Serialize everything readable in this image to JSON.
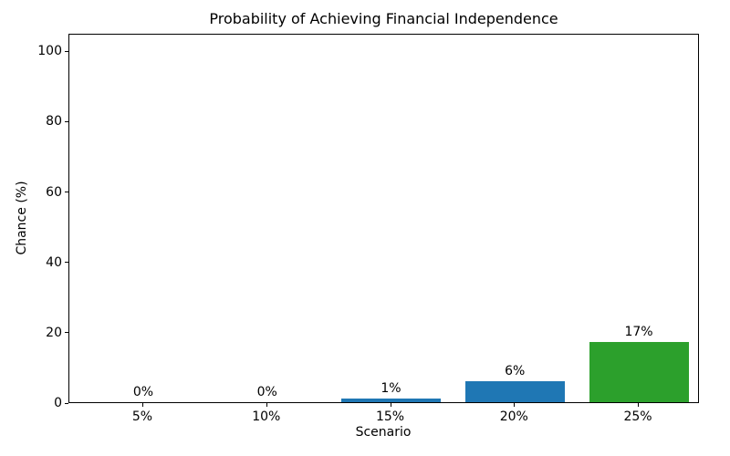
{
  "chart_data": {
    "type": "bar",
    "title": "Probability of Achieving Financial Independence",
    "xlabel": "Scenario",
    "ylabel": "Chance (%)",
    "categories": [
      "5%",
      "10%",
      "15%",
      "20%",
      "25%"
    ],
    "values": [
      0,
      0,
      1,
      6,
      17
    ],
    "bar_labels": [
      "0%",
      "0%",
      "1%",
      "6%",
      "17%"
    ],
    "bar_colors": [
      "#1f77b4",
      "#1f77b4",
      "#1f77b4",
      "#1f77b4",
      "#2ca02c"
    ],
    "yticks": [
      0,
      20,
      40,
      60,
      80,
      100
    ],
    "ylim": [
      0,
      105
    ],
    "grid": false,
    "legend": null,
    "background_color": "#ffffff",
    "spine_color": "#000000",
    "text_color": "#000000"
  }
}
